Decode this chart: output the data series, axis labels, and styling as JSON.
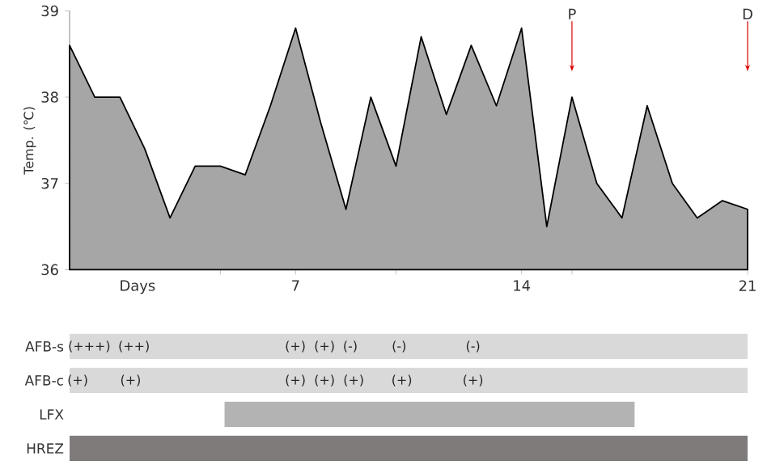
{
  "chart_data": [
    {
      "type": "area",
      "ylabel": "Temp. (℃)",
      "xlabel": "Days",
      "color": "#a6a6a6",
      "x": [
        0,
        0.78,
        1.56,
        2.33,
        3.11,
        3.89,
        4.67,
        5.44,
        6.22,
        7.0,
        7.78,
        8.56,
        9.33,
        10.11,
        10.89,
        11.67,
        12.44,
        13.22,
        14.0,
        14.78,
        15.56,
        16.33,
        17.11,
        17.89,
        18.67,
        19.44,
        20.22,
        21
      ],
      "values": [
        38.6,
        38.0,
        38.0,
        37.4,
        36.6,
        37.2,
        37.2,
        37.1,
        37.9,
        38.8,
        37.7,
        36.7,
        38.0,
        37.2,
        38.7,
        37.8,
        38.6,
        37.9,
        38.8,
        36.5,
        38.0,
        37.0,
        36.6,
        37.9,
        37.0,
        36.6,
        36.8,
        36.7
      ],
      "xlim": [
        0,
        21
      ],
      "ylim": [
        36,
        39
      ],
      "yticks": [
        36,
        37,
        38,
        39
      ],
      "xticks": [
        {
          "value": 4.67,
          "label": null
        },
        7,
        {
          "value": 10.11,
          "label": null
        },
        14,
        {
          "value": 15.56,
          "label": null
        },
        21
      ],
      "annotations": [
        {
          "text": "P",
          "x": 15.56,
          "y": 38.3
        },
        {
          "text": "D",
          "x": 21,
          "y": 38.3
        }
      ]
    },
    {
      "type": "bar",
      "orientation": "horizontal",
      "categories": [
        "AFB-s",
        "AFB-c",
        "LFX",
        "HREZ"
      ],
      "xlim": [
        0,
        21
      ],
      "tick_labels": "y",
      "base": [
        0,
        0,
        4.8,
        0
      ],
      "values": [
        21,
        21,
        12.7,
        21
      ],
      "colors": [
        "#d9d9d9",
        "#d9d9d9",
        "#b3b3b3",
        "#7f7b7b"
      ],
      "annotations": [
        "(+++)",
        "(++)",
        "(+)",
        "(+)",
        "(-)",
        "(-)",
        "(-)",
        "(+)",
        "(+)",
        "(+)",
        "(+)",
        "(+)",
        "(+)",
        "(+)"
      ]
    }
  ]
}
